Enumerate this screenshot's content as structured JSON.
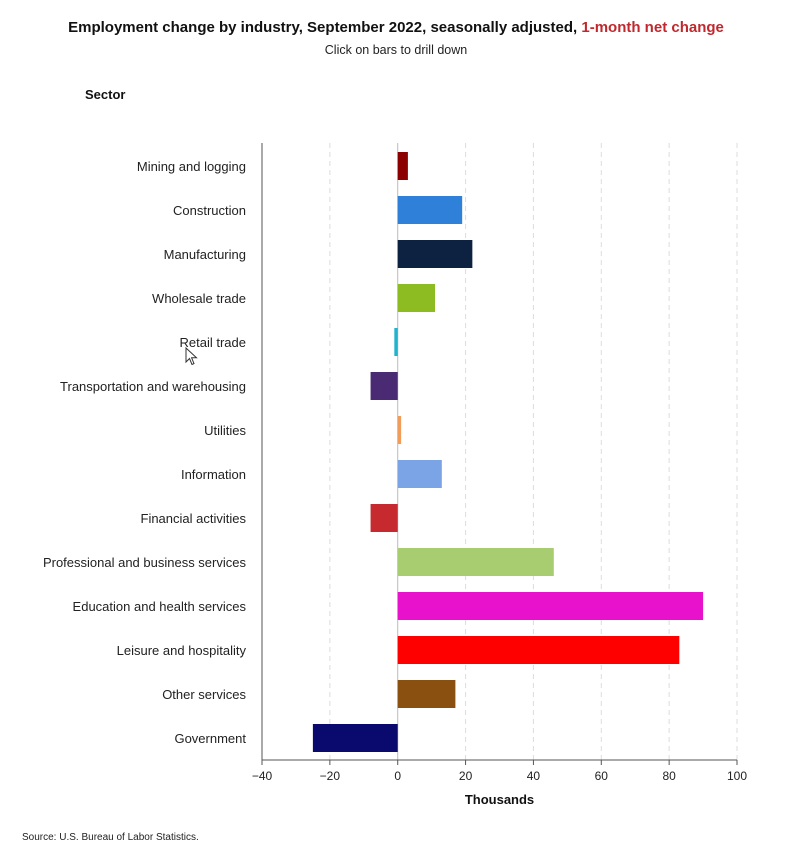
{
  "header": {
    "title_main": "Employment change by industry, September 2022, seasonally adjusted, ",
    "title_highlight": "1-month net change",
    "subtitle": "Click on bars to drill down",
    "sector_label": "Sector"
  },
  "footer": {
    "source": "Source: U.S. Bureau of Labor Statistics."
  },
  "colors": {
    "highlight": "#c0282d"
  },
  "chart_data": {
    "type": "bar",
    "orientation": "horizontal",
    "title": "Employment change by industry, September 2022, seasonally adjusted, 1-month net change",
    "xlabel": "Thousands",
    "ylabel": "Sector",
    "xlim": [
      -40,
      100
    ],
    "xticks": [
      -40,
      -20,
      0,
      20,
      40,
      60,
      80,
      100
    ],
    "xtick_labels": [
      "−40",
      "−20",
      "0",
      "20",
      "40",
      "60",
      "80",
      "100"
    ],
    "grid": "vertical dashed",
    "categories": [
      "Mining and logging",
      "Construction",
      "Manufacturing",
      "Wholesale trade",
      "Retail trade",
      "Transportation and warehousing",
      "Utilities",
      "Information",
      "Financial activities",
      "Professional and business services",
      "Education and health services",
      "Leisure and hospitality",
      "Other services",
      "Government"
    ],
    "values": [
      3,
      19,
      22,
      11,
      -1,
      -8,
      1,
      13,
      -8,
      46,
      90,
      83,
      17,
      -25
    ],
    "bar_colors": [
      "#8b0000",
      "#2f80d8",
      "#0d2240",
      "#8cbb22",
      "#20b4cc",
      "#4a2a72",
      "#f29c5a",
      "#7aa4e6",
      "#c72a2e",
      "#a8cc70",
      "#e812cc",
      "#ff0000",
      "#8a5010",
      "#0a0a6e"
    ]
  }
}
